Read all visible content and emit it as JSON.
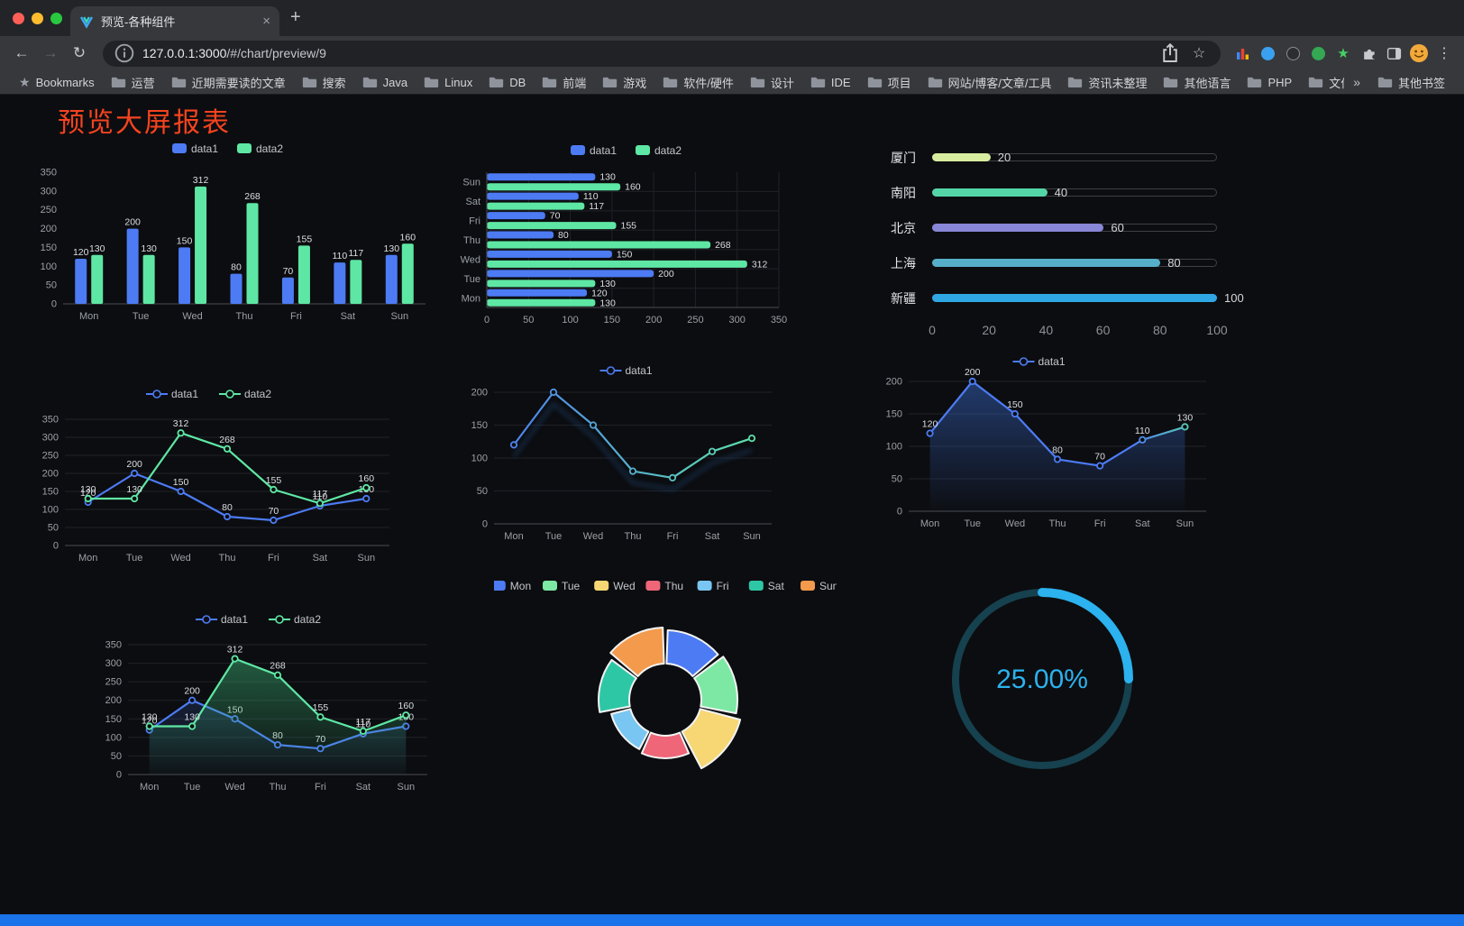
{
  "browser": {
    "tab": {
      "title": "预览-各种组件"
    },
    "toolbar": {
      "url_host": "127.0.0.1:3000",
      "url_path": "/#/chart/preview/9"
    },
    "bookmarks": {
      "root_label": "Bookmarks",
      "items": [
        "运营",
        "近期需要读的文章",
        "搜索",
        "Java",
        "Linux",
        "DB",
        "前端",
        "游戏",
        "软件/硬件",
        "设计",
        "IDE",
        "项目",
        "网站/博客/文章/工具",
        "资讯未整理",
        "其他语言",
        "PHP",
        "文件服务器"
      ],
      "overflow": "»",
      "other": "其他书签"
    }
  },
  "icons": {
    "back": "←",
    "forward": "→",
    "reload": "↻",
    "close": "×",
    "new_tab": "+",
    "star": "☆",
    "kebab": "⋮",
    "ext_star": "★"
  },
  "page": {
    "title": "预览大屏报表",
    "title_color": "#F4431F",
    "bottom_bar_color": "#1A73E8",
    "background": "#0c0d10"
  },
  "chart_data": [
    {
      "id": "bar",
      "type": "bar",
      "categories": [
        "Mon",
        "Tue",
        "Wed",
        "Thu",
        "Fri",
        "Sat",
        "Sun"
      ],
      "series": [
        {
          "name": "data1",
          "color": "#4C7BF4",
          "values": [
            120,
            200,
            150,
            80,
            70,
            110,
            130
          ]
        },
        {
          "name": "data2",
          "color": "#5EE7A4",
          "values": [
            130,
            130,
            312,
            268,
            155,
            117,
            160
          ]
        }
      ],
      "ylim": [
        0,
        350
      ],
      "ytick": 50,
      "legend_position": "top"
    },
    {
      "id": "hbar",
      "type": "hbar",
      "categories": [
        "Mon",
        "Tue",
        "Wed",
        "Thu",
        "Fri",
        "Sat",
        "Sun"
      ],
      "series": [
        {
          "name": "data1",
          "color": "#4C7BF4",
          "values": [
            120,
            200,
            150,
            80,
            70,
            110,
            130
          ]
        },
        {
          "name": "data2",
          "color": "#5EE7A4",
          "values": [
            130,
            130,
            312,
            268,
            155,
            117,
            160
          ]
        }
      ],
      "xlim": [
        0,
        350
      ],
      "xtick": 50,
      "legend_position": "top"
    },
    {
      "id": "progress",
      "type": "progress",
      "max": 100,
      "axis_ticks": [
        0,
        20,
        40,
        60,
        80,
        100
      ],
      "rows": [
        {
          "label": "厦门",
          "value": 20,
          "color": "#D8EC9F"
        },
        {
          "label": "南阳",
          "value": 40,
          "color": "#54D5A8"
        },
        {
          "label": "北京",
          "value": 60,
          "color": "#8886D6"
        },
        {
          "label": "上海",
          "value": 80,
          "color": "#55AFC9"
        },
        {
          "label": "新疆",
          "value": 100,
          "color": "#2FA7E4"
        }
      ]
    },
    {
      "id": "line2",
      "type": "line",
      "categories": [
        "Mon",
        "Tue",
        "Wed",
        "Thu",
        "Fri",
        "Sat",
        "Sun"
      ],
      "series": [
        {
          "name": "data1",
          "color": "#4C7BF4",
          "values": [
            120,
            200,
            150,
            80,
            70,
            110,
            130
          ]
        },
        {
          "name": "data2",
          "color": "#5EE7A4",
          "values": [
            130,
            130,
            312,
            268,
            155,
            117,
            160
          ]
        }
      ],
      "ylim": [
        0,
        350
      ],
      "ytick": 50,
      "show_labels": true
    },
    {
      "id": "gradline",
      "type": "line",
      "categories": [
        "Mon",
        "Tue",
        "Wed",
        "Thu",
        "Fri",
        "Sat",
        "Sun"
      ],
      "series": [
        {
          "name": "data1",
          "color": "#4C7BF4",
          "values": [
            120,
            200,
            150,
            80,
            70,
            110,
            130
          ],
          "gradient_stops": [
            [
              0,
              "#4C7BF4"
            ],
            [
              1,
              "#5EE7A4"
            ]
          ]
        }
      ],
      "ylim": [
        0,
        200
      ],
      "ytick": 50,
      "show_labels": false,
      "shadow": true
    },
    {
      "id": "area1",
      "type": "line",
      "categories": [
        "Mon",
        "Tue",
        "Wed",
        "Thu",
        "Fri",
        "Sat",
        "Sun"
      ],
      "series": [
        {
          "name": "data1",
          "color": "#4C7BF4",
          "values": [
            120,
            200,
            150,
            80,
            70,
            110,
            130
          ],
          "gradient_stops": [
            [
              0,
              "#4C7BF4"
            ],
            [
              0.75,
              "#4C7BF4"
            ],
            [
              1,
              "#5EE7A4"
            ]
          ],
          "area": true,
          "area_color": "#3868C8",
          "area_opacity": 0.5
        }
      ],
      "ylim": [
        0,
        200
      ],
      "ytick": 50,
      "show_labels": true
    },
    {
      "id": "linearea2",
      "type": "line",
      "categories": [
        "Mon",
        "Tue",
        "Wed",
        "Thu",
        "Fri",
        "Sat",
        "Sun"
      ],
      "series": [
        {
          "name": "data1",
          "color": "#4C7BF4",
          "values": [
            120,
            200,
            150,
            80,
            70,
            110,
            130
          ],
          "area": true,
          "area_opacity": 0.28
        },
        {
          "name": "data2",
          "color": "#5EE7A4",
          "values": [
            130,
            130,
            312,
            268,
            155,
            117,
            160
          ],
          "area": true,
          "area_color": "#3DBB7A",
          "area_opacity": 0.5
        }
      ],
      "ylim": [
        0,
        350
      ],
      "ytick": 50,
      "show_labels": true
    },
    {
      "id": "rose",
      "type": "pie",
      "rose": true,
      "legend": [
        "Mon",
        "Tue",
        "Wed",
        "Thu",
        "Fri",
        "Sat",
        "Sun"
      ],
      "values": [
        120,
        130,
        150,
        80,
        70,
        110,
        130
      ],
      "colors": [
        "#4C7BF4",
        "#7CE8A4",
        "#F7D774",
        "#EE6678",
        "#79C6F2",
        "#2EC7A6",
        "#F39A4C"
      ]
    },
    {
      "id": "gauge",
      "type": "gauge",
      "value": 25,
      "label": "25.00%",
      "color": "#2CB2EE",
      "track_color": "#16414F"
    }
  ]
}
